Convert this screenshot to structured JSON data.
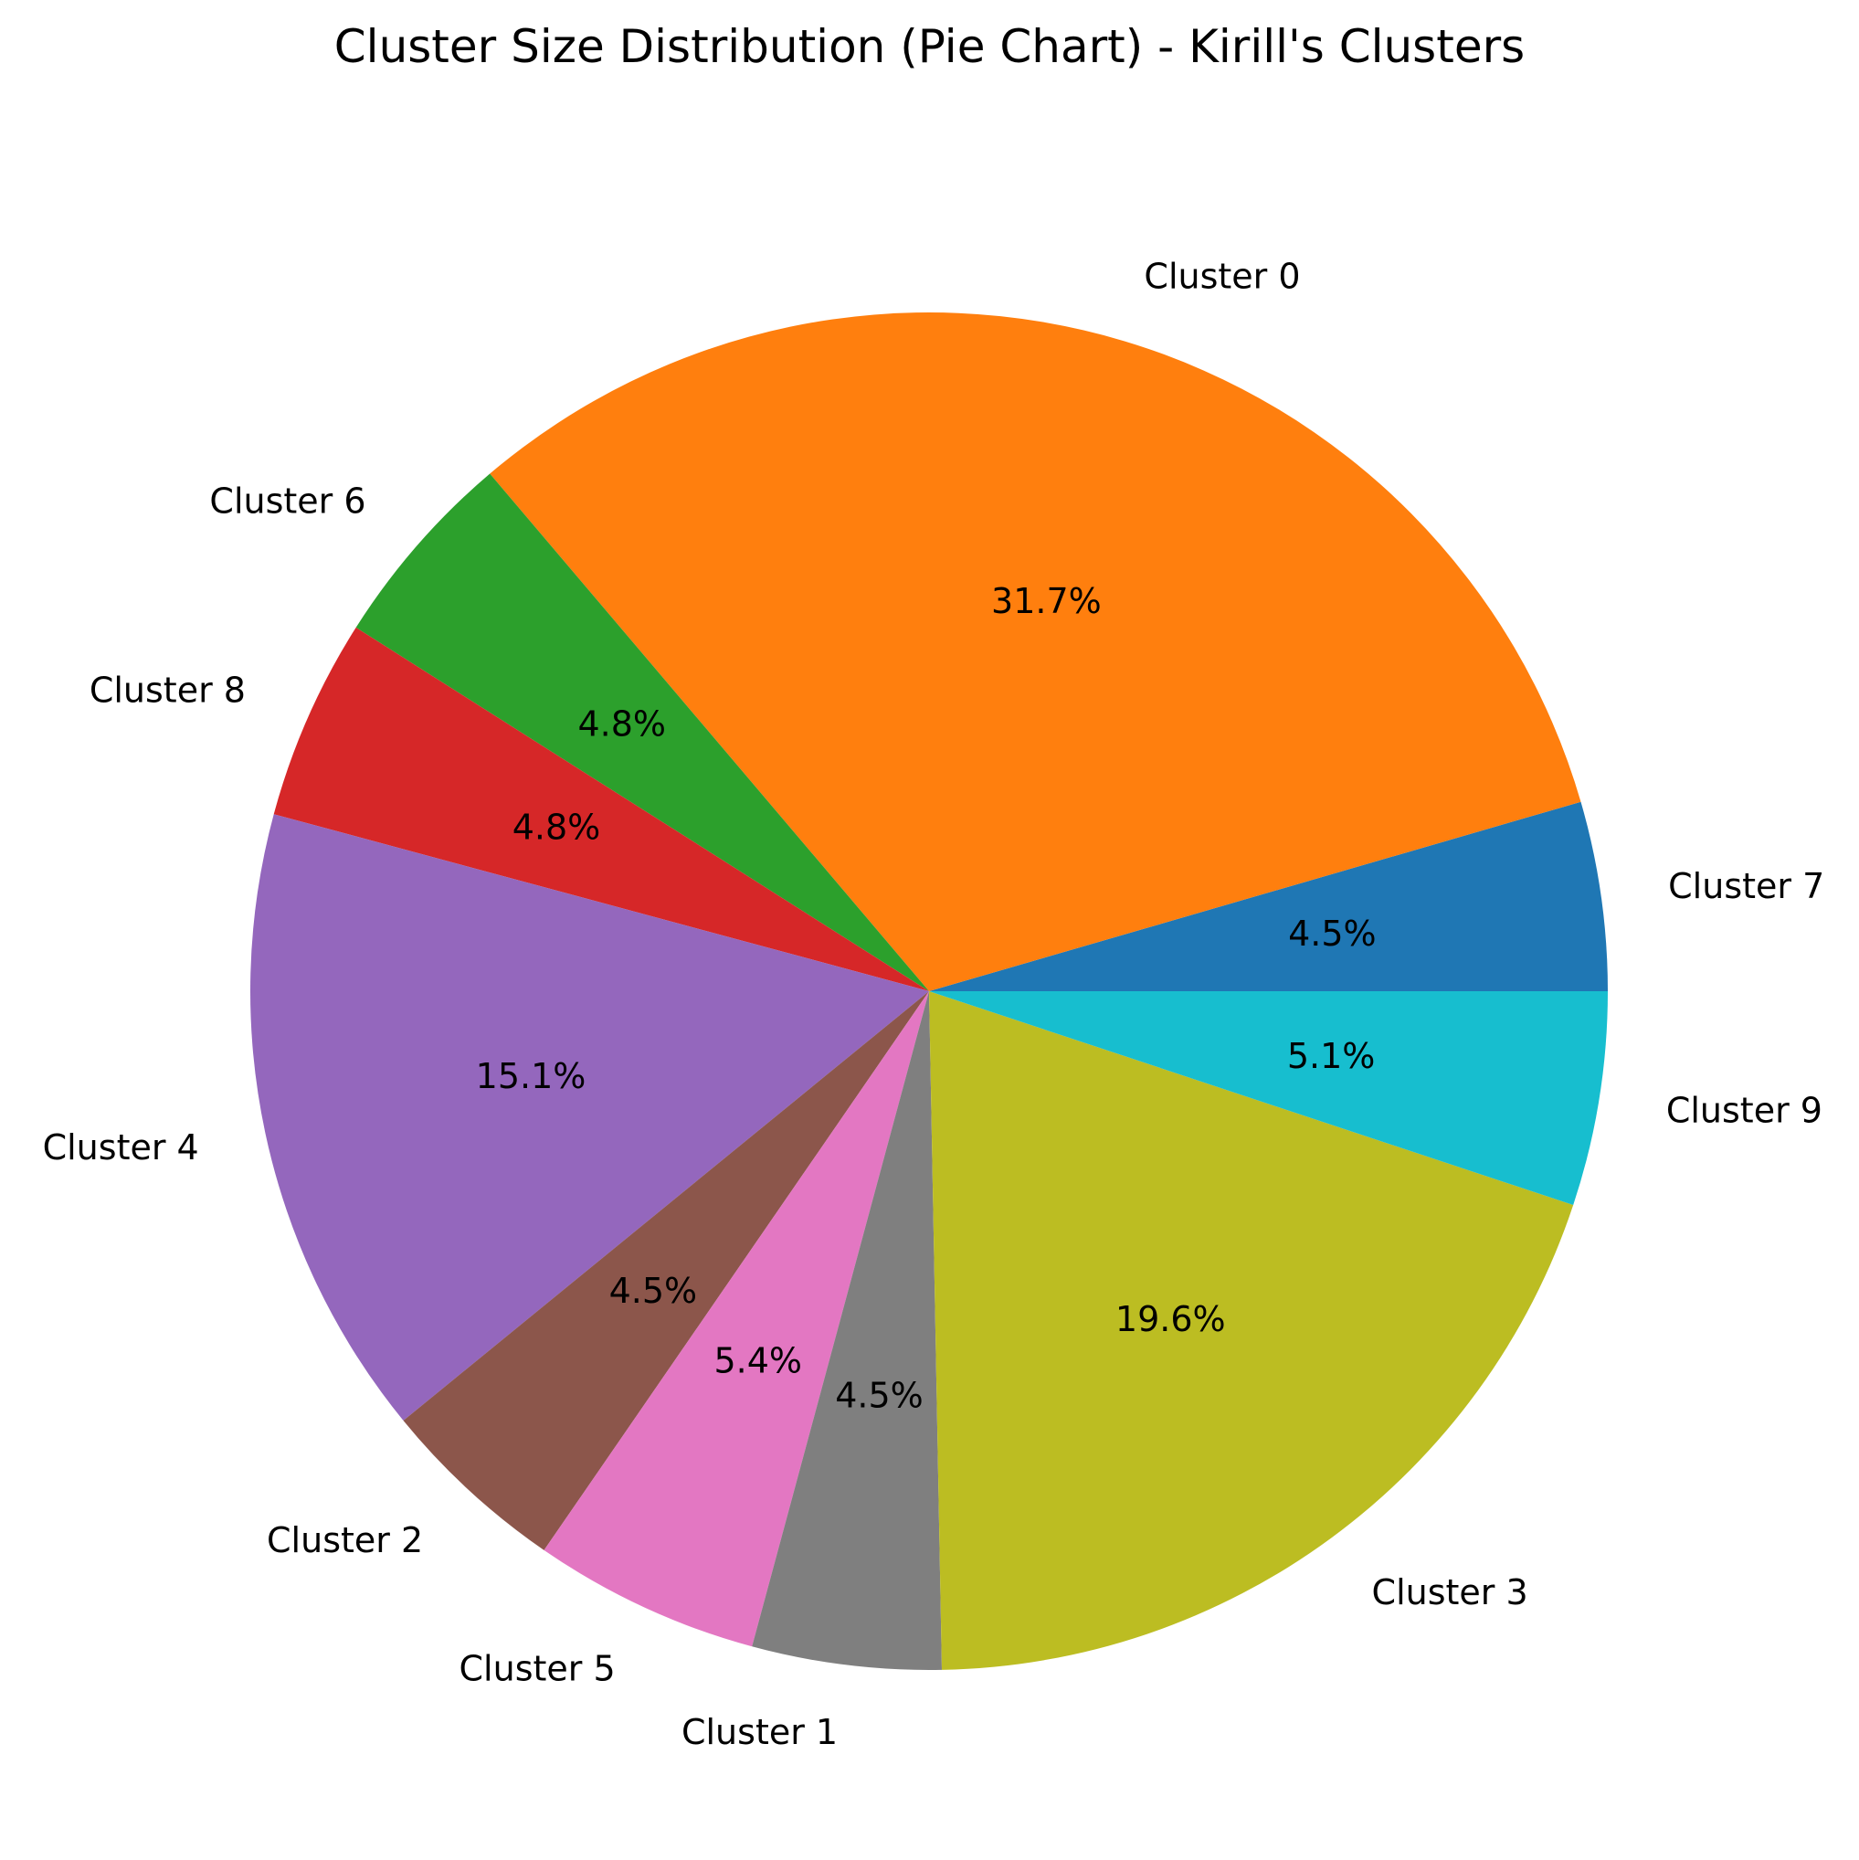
{
  "chart_data": {
    "type": "pie",
    "title": "Cluster Size Distribution (Pie Chart) - Kirill's Clusters",
    "start_angle_deg": 0,
    "direction": "counterclockwise",
    "slices": [
      {
        "label": "Cluster 7",
        "value": 4.5,
        "pct_label": "4.5%",
        "color": "#1f77b4"
      },
      {
        "label": "Cluster 0",
        "value": 31.7,
        "pct_label": "31.7%",
        "color": "#ff7f0e"
      },
      {
        "label": "Cluster 6",
        "value": 4.8,
        "pct_label": "4.8%",
        "color": "#2ca02c"
      },
      {
        "label": "Cluster 8",
        "value": 4.8,
        "pct_label": "4.8%",
        "color": "#d62728"
      },
      {
        "label": "Cluster 4",
        "value": 15.1,
        "pct_label": "15.1%",
        "color": "#9467bd"
      },
      {
        "label": "Cluster 2",
        "value": 4.5,
        "pct_label": "4.5%",
        "color": "#8c564b"
      },
      {
        "label": "Cluster 5",
        "value": 5.4,
        "pct_label": "5.4%",
        "color": "#e377c2"
      },
      {
        "label": "Cluster 1",
        "value": 4.5,
        "pct_label": "4.5%",
        "color": "#7f7f7f"
      },
      {
        "label": "Cluster 3",
        "value": 19.6,
        "pct_label": "19.6%",
        "color": "#bcbd22"
      },
      {
        "label": "Cluster 9",
        "value": 5.1,
        "pct_label": "5.1%",
        "color": "#17becf"
      }
    ]
  }
}
